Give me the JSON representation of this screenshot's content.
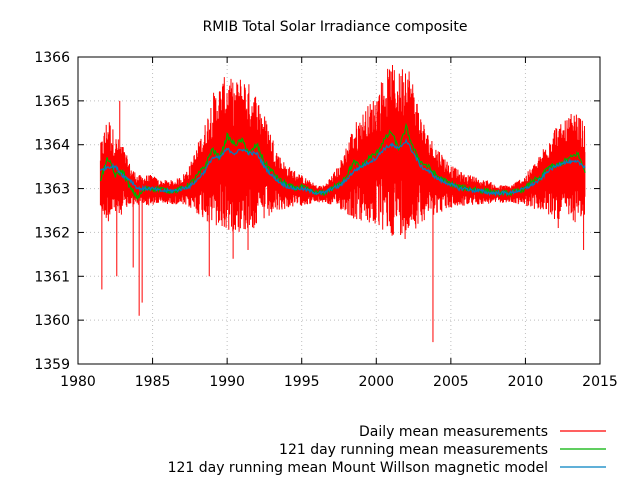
{
  "chart_data": {
    "type": "line",
    "title": "RMIB Total Solar Irradiance composite",
    "xlabel": "",
    "ylabel": "",
    "xlim": [
      1980,
      2015
    ],
    "ylim": [
      1359,
      1366
    ],
    "xticks": [
      1980,
      1985,
      1990,
      1995,
      2000,
      2005,
      2010,
      2015
    ],
    "yticks": [
      1359,
      1360,
      1361,
      1362,
      1363,
      1364,
      1365,
      1366
    ],
    "x_range_data": [
      1981.5,
      2014.0
    ],
    "legend_position": "bottom-right outside plot",
    "series": [
      {
        "name": "Daily mean measurements",
        "color": "#ff0000",
        "style": "daily noisy",
        "x": [
          1981.5,
          1982.0,
          1982.5,
          1983.0,
          1983.5,
          1984.0,
          1984.5,
          1985.0,
          1985.5,
          1986.0,
          1986.5,
          1987.0,
          1987.5,
          1988.0,
          1988.5,
          1989.0,
          1989.5,
          1990.0,
          1990.5,
          1991.0,
          1991.5,
          1992.0,
          1992.5,
          1993.0,
          1993.5,
          1994.0,
          1994.5,
          1995.0,
          1995.5,
          1996.0,
          1996.5,
          1997.0,
          1997.5,
          1998.0,
          1998.5,
          1999.0,
          1999.5,
          2000.0,
          2000.5,
          2001.0,
          2001.5,
          2002.0,
          2002.5,
          2003.0,
          2003.5,
          2004.0,
          2004.5,
          2005.0,
          2005.5,
          2006.0,
          2006.5,
          2007.0,
          2007.5,
          2008.0,
          2008.5,
          2009.0,
          2009.5,
          2010.0,
          2010.5,
          2011.0,
          2011.5,
          2012.0,
          2012.5,
          2013.0,
          2013.5,
          2014.0
        ],
        "y": [
          1363.3,
          1363.6,
          1363.4,
          1363.3,
          1363.1,
          1363.0,
          1363.0,
          1363.0,
          1362.95,
          1362.95,
          1362.95,
          1363.0,
          1363.1,
          1363.3,
          1363.5,
          1363.8,
          1363.9,
          1364.0,
          1363.9,
          1364.0,
          1363.9,
          1363.8,
          1363.6,
          1363.4,
          1363.2,
          1363.1,
          1363.05,
          1363.0,
          1362.95,
          1362.9,
          1362.9,
          1363.0,
          1363.1,
          1363.3,
          1363.5,
          1363.6,
          1363.7,
          1363.8,
          1364.0,
          1364.1,
          1364.0,
          1364.2,
          1363.9,
          1363.6,
          1363.4,
          1363.3,
          1363.2,
          1363.1,
          1363.05,
          1363.0,
          1363.0,
          1362.95,
          1362.95,
          1362.9,
          1362.9,
          1362.9,
          1362.95,
          1363.0,
          1363.1,
          1363.2,
          1363.4,
          1363.5,
          1363.5,
          1363.6,
          1363.6,
          1363.5
        ],
        "spikes": [
          {
            "x": 1981.6,
            "y": 1360.7
          },
          {
            "x": 1982.6,
            "y": 1361.0
          },
          {
            "x": 1983.7,
            "y": 1361.2
          },
          {
            "x": 1984.1,
            "y": 1360.1
          },
          {
            "x": 1984.3,
            "y": 1360.4
          },
          {
            "x": 1988.8,
            "y": 1361.0
          },
          {
            "x": 1990.4,
            "y": 1361.4
          },
          {
            "x": 1991.4,
            "y": 1361.6
          },
          {
            "x": 2003.8,
            "y": 1359.5
          },
          {
            "x": 2012.2,
            "y": 1362.1
          },
          {
            "x": 2013.9,
            "y": 1361.6
          },
          {
            "x": 2002.2,
            "y": 1365.2
          },
          {
            "x": 1991.2,
            "y": 1365.3
          },
          {
            "x": 1982.8,
            "y": 1365.0
          }
        ]
      },
      {
        "name": "121 day running mean measurements",
        "color": "#00b000",
        "x": [
          1981.5,
          1982.0,
          1982.5,
          1983.0,
          1983.5,
          1984.0,
          1984.5,
          1985.0,
          1985.5,
          1986.0,
          1986.5,
          1987.0,
          1987.5,
          1988.0,
          1988.5,
          1989.0,
          1989.5,
          1990.0,
          1990.5,
          1991.0,
          1991.5,
          1992.0,
          1992.5,
          1993.0,
          1993.5,
          1994.0,
          1994.5,
          1995.0,
          1995.5,
          1996.0,
          1996.5,
          1997.0,
          1997.5,
          1998.0,
          1998.5,
          1999.0,
          1999.5,
          2000.0,
          2000.5,
          2001.0,
          2001.5,
          2002.0,
          2002.5,
          2003.0,
          2003.5,
          2004.0,
          2004.5,
          2005.0,
          2005.5,
          2006.0,
          2006.5,
          2007.0,
          2007.5,
          2008.0,
          2008.5,
          2009.0,
          2009.5,
          2010.0,
          2010.5,
          2011.0,
          2011.5,
          2012.0,
          2012.5,
          2013.0,
          2013.5,
          2014.0
        ],
        "y": [
          1363.2,
          1363.7,
          1363.3,
          1363.4,
          1363.0,
          1362.8,
          1363.0,
          1363.0,
          1363.0,
          1362.95,
          1362.95,
          1363.0,
          1363.1,
          1363.3,
          1363.5,
          1363.9,
          1363.7,
          1364.2,
          1364.0,
          1364.1,
          1363.8,
          1364.0,
          1363.6,
          1363.4,
          1363.2,
          1363.1,
          1363.0,
          1363.05,
          1362.95,
          1362.9,
          1362.9,
          1363.0,
          1363.1,
          1363.3,
          1363.6,
          1363.5,
          1363.7,
          1363.8,
          1364.1,
          1364.3,
          1363.9,
          1364.4,
          1363.9,
          1363.6,
          1363.5,
          1363.3,
          1363.2,
          1363.1,
          1363.05,
          1363.0,
          1363.0,
          1362.95,
          1362.95,
          1362.9,
          1362.9,
          1362.9,
          1362.95,
          1363.0,
          1363.2,
          1363.2,
          1363.5,
          1363.5,
          1363.6,
          1363.7,
          1363.8,
          1363.4
        ]
      },
      {
        "name": "121 day running mean Mount Willson magnetic model",
        "color": "#0080c0",
        "x": [
          1981.5,
          1982.0,
          1982.5,
          1983.0,
          1983.5,
          1984.0,
          1984.5,
          1985.0,
          1985.5,
          1986.0,
          1986.5,
          1987.0,
          1987.5,
          1988.0,
          1988.5,
          1989.0,
          1989.5,
          1990.0,
          1990.5,
          1991.0,
          1991.5,
          1992.0,
          1992.5,
          1993.0,
          1993.5,
          1994.0,
          1994.5,
          1995.0,
          1995.5,
          1996.0,
          1996.5,
          1997.0,
          1997.5,
          1998.0,
          1998.5,
          1999.0,
          1999.5,
          2000.0,
          2000.5,
          2001.0,
          2001.5,
          2002.0,
          2002.5,
          2003.0,
          2003.5,
          2004.0,
          2004.5,
          2005.0,
          2005.5,
          2006.0,
          2006.5,
          2007.0,
          2007.5,
          2008.0,
          2008.5,
          2009.0,
          2009.5,
          2010.0,
          2010.5,
          2011.0,
          2011.5,
          2012.0,
          2012.5,
          2013.0,
          2013.5,
          2014.0
        ],
        "y": [
          1363.4,
          1363.5,
          1363.5,
          1363.3,
          1363.2,
          1363.0,
          1363.0,
          1363.0,
          1362.95,
          1362.95,
          1362.95,
          1363.0,
          1363.05,
          1363.2,
          1363.4,
          1363.7,
          1363.7,
          1363.9,
          1363.8,
          1363.9,
          1363.8,
          1363.8,
          1363.5,
          1363.3,
          1363.15,
          1363.05,
          1363.0,
          1363.0,
          1362.95,
          1362.9,
          1362.9,
          1363.0,
          1363.05,
          1363.2,
          1363.4,
          1363.5,
          1363.6,
          1363.7,
          1363.9,
          1364.0,
          1363.9,
          1364.1,
          1363.8,
          1363.5,
          1363.4,
          1363.25,
          1363.15,
          1363.1,
          1363.0,
          1363.0,
          1362.95,
          1362.95,
          1362.9,
          1362.9,
          1362.9,
          1362.9,
          1362.95,
          1363.0,
          1363.1,
          1363.2,
          1363.4,
          1363.5,
          1363.6,
          1363.6,
          1363.6,
          1363.5
        ]
      }
    ]
  }
}
